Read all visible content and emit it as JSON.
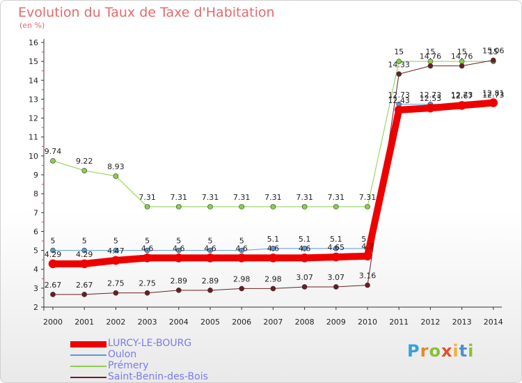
{
  "title": "Evolution du Taux de Taxe d'Habitation",
  "subtitle": "(en %)",
  "logo": "Proxiti",
  "chart_data": {
    "type": "line",
    "x": [
      2000,
      2001,
      2002,
      2003,
      2004,
      2005,
      2006,
      2007,
      2008,
      2009,
      2010,
      2011,
      2012,
      2013,
      2014
    ],
    "ylim": [
      2,
      16
    ],
    "yticks": [
      2,
      3,
      4,
      5,
      6,
      7,
      8,
      9,
      10,
      11,
      12,
      13,
      14,
      15,
      16
    ],
    "grid": false,
    "legend_position": "bottom-left",
    "series": [
      {
        "name": "Prémery",
        "color": "#88d04a",
        "width": 1,
        "values": [
          9.74,
          9.22,
          8.93,
          7.31,
          7.31,
          7.31,
          7.31,
          7.31,
          7.31,
          7.31,
          7.31,
          15,
          15,
          15,
          15
        ],
        "labels": [
          "9.74",
          "9.22",
          "8.93",
          "7.31",
          "7.31",
          "7.31",
          "7.31",
          "7.31",
          "7.31",
          "7.31",
          "7.31",
          "15",
          "15",
          "15",
          "15"
        ]
      },
      {
        "name": "Oulon",
        "color": "#5a9ad5",
        "width": 1,
        "values": [
          5,
          5,
          5,
          5,
          5,
          5,
          5,
          5.1,
          5.1,
          5.1,
          5.1,
          12.73,
          12.73,
          12.73,
          12.73
        ],
        "labels": [
          "5",
          "5",
          "5",
          "5",
          "5",
          "5",
          "5",
          "5.1",
          "5.1",
          "5.1",
          "5.1",
          "12.73",
          "12.73",
          "12.73",
          "12.73"
        ]
      },
      {
        "name": "Saint-Benin-des-Bois",
        "color": "#6b1e22",
        "width": 1,
        "values": [
          2.67,
          2.67,
          2.75,
          2.75,
          2.89,
          2.89,
          2.98,
          2.98,
          3.07,
          3.07,
          3.16,
          14.33,
          14.76,
          14.76,
          15.06
        ],
        "labels": [
          "2.67",
          "2.67",
          "2.75",
          "2.75",
          "2.89",
          "2.89",
          "2.98",
          "2.98",
          "3.07",
          "3.07",
          "3.16",
          "14.33",
          "14.76",
          "14.76",
          "15.06"
        ]
      },
      {
        "name": "LURCY-LE-BOURG",
        "color": "#ee0000",
        "width": 10,
        "values": [
          4.29,
          4.29,
          4.47,
          4.6,
          4.6,
          4.6,
          4.6,
          4.6,
          4.6,
          4.65,
          4.7,
          12.43,
          12.53,
          12.67,
          12.81
        ],
        "labels": [
          "4.29",
          "4.29",
          "4.47",
          "4.6",
          "4.6",
          "4.6",
          "4.6",
          "4.6",
          "4.6",
          "4.65",
          "4.7",
          "12.43",
          "12.53",
          "12.67",
          "12.81"
        ]
      }
    ]
  },
  "legend": [
    {
      "label": "LURCY-LE-BOURG",
      "color": "#ee0000",
      "width": 9
    },
    {
      "label": "Oulon",
      "color": "#5a9ad5",
      "width": 2
    },
    {
      "label": "Prémery",
      "color": "#88d04a",
      "width": 2
    },
    {
      "label": "Saint-Benin-des-Bois",
      "color": "#6b1e22",
      "width": 2
    }
  ]
}
